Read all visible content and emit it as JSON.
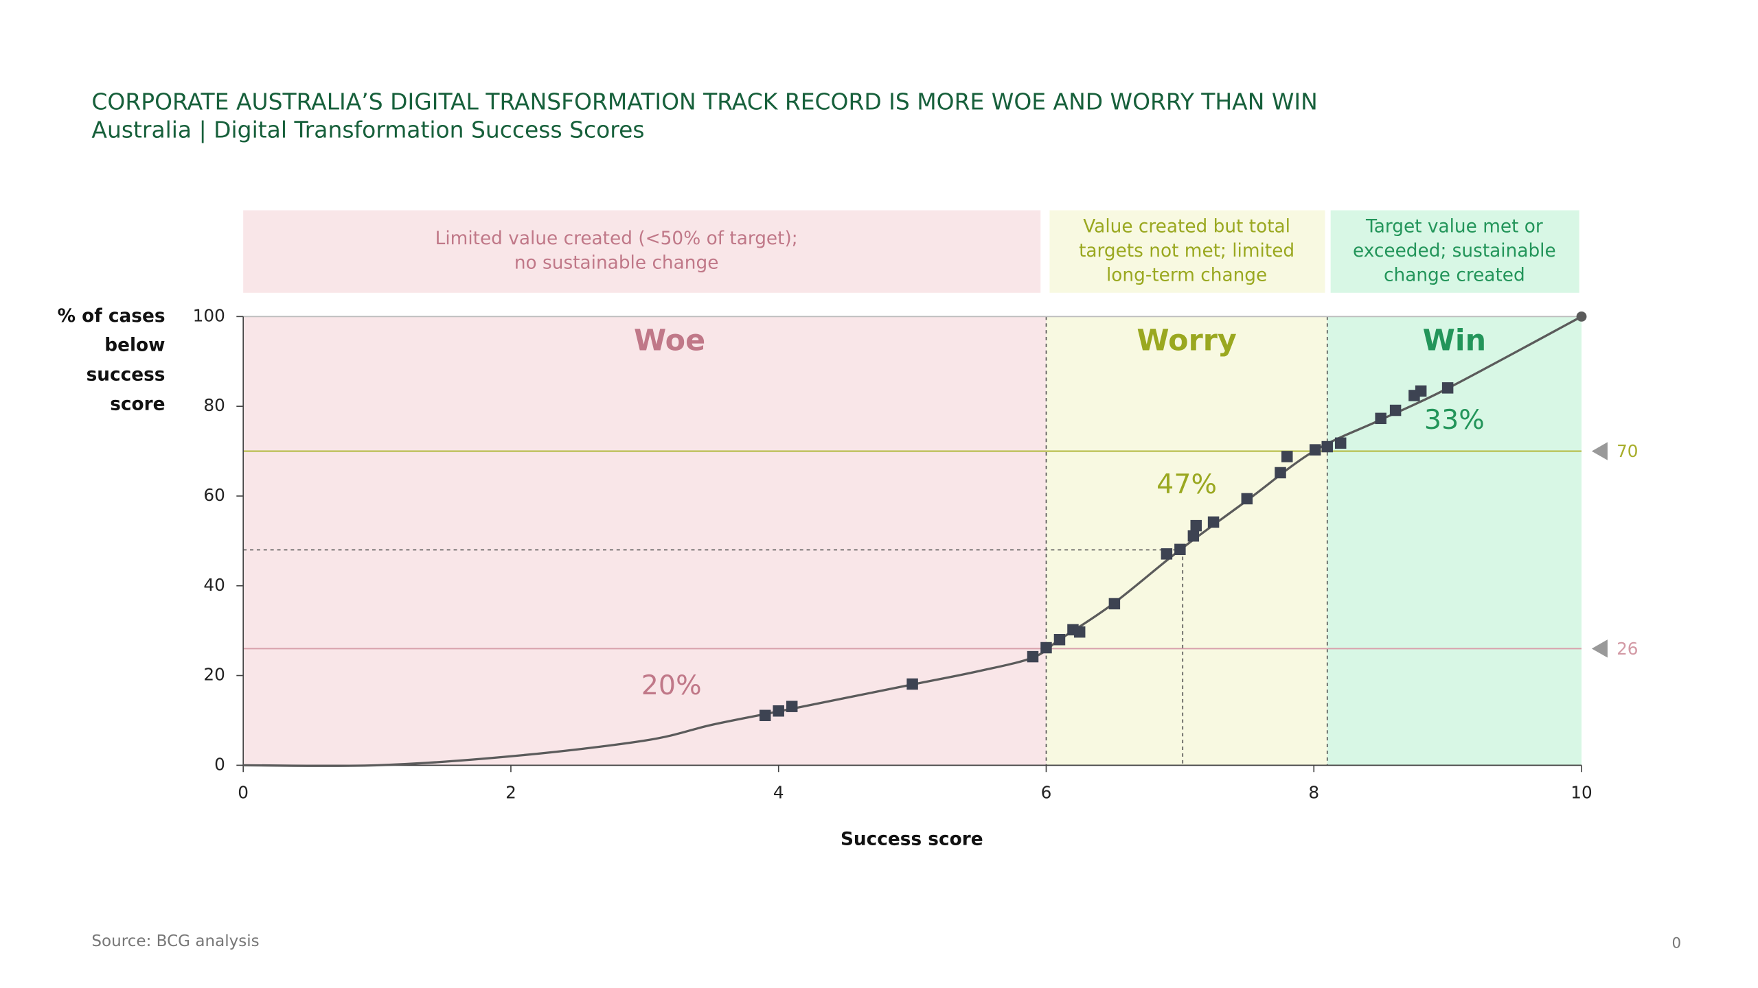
{
  "chart_data": {
    "type": "scatter",
    "title": "CORPORATE AUSTRALIA’S DIGITAL TRANSFORMATION TRACK RECORD IS MORE WOE AND WORRY THAN WIN",
    "subtitle": "Australia | Digital Transformation Success Scores",
    "x_label": "Success score",
    "y_label": [
      "% of cases",
      "below",
      "success",
      "score"
    ],
    "source": "Source:  BCG analysis",
    "page_number": "0",
    "xlim": [
      0,
      10
    ],
    "ylim": [
      0,
      100
    ],
    "xticks": [
      0,
      2,
      4,
      6,
      8,
      10
    ],
    "yticks": [
      0,
      20,
      40,
      60,
      80,
      100
    ],
    "series": [
      {
        "mode": "line",
        "color": "#5b5b5b",
        "x": [
          0,
          1,
          2,
          3,
          3.5,
          4,
          5,
          5.5,
          5.9,
          6.1,
          6.5,
          7,
          7.5,
          8,
          8.5,
          9,
          10
        ],
        "values": [
          0,
          0,
          2,
          5.5,
          9,
          12,
          18,
          21,
          24,
          28,
          36,
          48,
          59,
          70,
          77,
          84,
          100
        ]
      },
      {
        "mode": "markers",
        "color": "#3d4352",
        "x": [
          3.9,
          4.0,
          4.1,
          5.0,
          5.9,
          6.0,
          6.1,
          6.2,
          6.25,
          6.51,
          6.9,
          7.0,
          7.1,
          7.12,
          7.25,
          7.5,
          7.75,
          7.8,
          8.01,
          8.1,
          8.2,
          8.5,
          8.61,
          8.75,
          8.8,
          9.0
        ],
        "values": [
          11.1,
          12.1,
          13.1,
          18.1,
          24.2,
          26.2,
          28.0,
          30.2,
          29.7,
          36.0,
          47.1,
          48.1,
          51.1,
          53.4,
          54.2,
          59.4,
          65.2,
          68.8,
          70.3,
          71.0,
          71.8,
          77.3,
          79.1,
          82.4,
          83.4,
          84.1
        ]
      },
      {
        "mode": "end-point",
        "color": "#5b5b5b",
        "x": [
          10
        ],
        "values": [
          100
        ]
      }
    ],
    "regions": [
      {
        "label": "Woe",
        "from": 0,
        "to": 6,
        "color": "#f9e6e8",
        "text_color": "#c07888",
        "share": 20,
        "share_label": "20%",
        "description": [
          "Limited value created (<50% of target);",
          "no sustainable change"
        ]
      },
      {
        "label": "Worry",
        "from": 6,
        "to": 8.1,
        "color": "#f8f9e1",
        "text_color": "#9aa820",
        "share": 47,
        "share_label": "47%",
        "description": [
          "Value created but total",
          "targets not met; limited",
          "long-term change"
        ]
      },
      {
        "label": "Win",
        "from": 8.1,
        "to": 10,
        "color": "#d8f7e5",
        "text_color": "#23955a",
        "share": 33,
        "share_label": "33%",
        "description": [
          "Target value met or",
          "exceeded; sustainable",
          "change created"
        ]
      }
    ],
    "reference_lines": [
      {
        "value": 70,
        "color": "#b5bb45",
        "label_color": "#a7ad2a"
      },
      {
        "value": 26,
        "color": "#d9a3ad",
        "label_color": "#d39aa5"
      }
    ],
    "guide": {
      "x": 7.02,
      "y": 48
    }
  }
}
